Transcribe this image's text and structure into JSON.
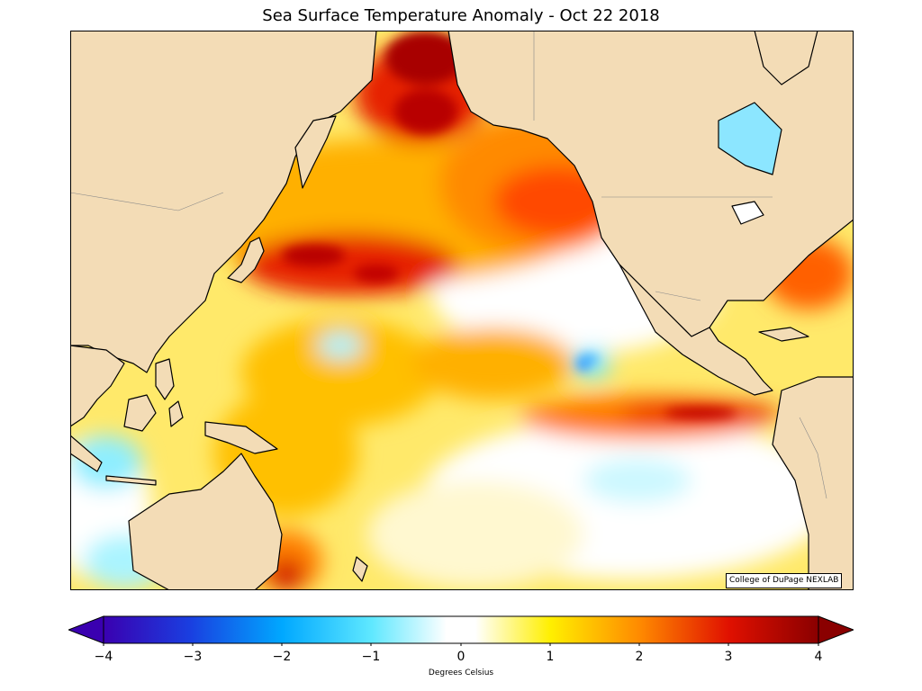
{
  "title": "Sea Surface Temperature Anomaly - Oct 22 2018",
  "credit": "College of DuPage NEXLAB",
  "colorbar": {
    "label": "Degrees Celsius",
    "ticks": [
      "−4",
      "−3",
      "−2",
      "−1",
      "0",
      "1",
      "2",
      "3",
      "4"
    ],
    "range": [
      -4,
      4
    ],
    "extend": "both"
  },
  "colors": {
    "land": "#f3dcb6",
    "coast": "#000000",
    "anomaly_hot": "#a00000",
    "anomaly_warm": "#ff9000",
    "anomaly_mild": "#fff200",
    "anomaly_zero": "#ffffff",
    "anomaly_cool": "#9bf4ff",
    "anomaly_cold": "#00a0ff",
    "anomaly_coldest": "#3a00b0"
  },
  "map": {
    "region": "North Pacific Ocean",
    "projection": "equirectangular",
    "lat_range": [
      -30,
      72
    ],
    "lon_range_east": [
      95,
      290
    ]
  }
}
